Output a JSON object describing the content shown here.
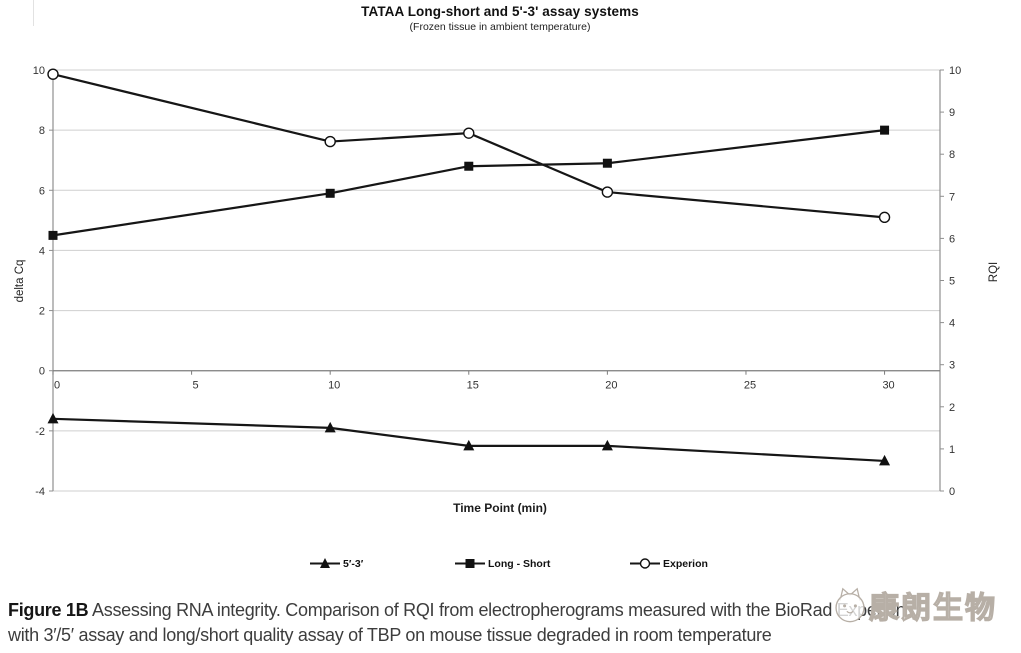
{
  "chart": {
    "title": "TATAA Long-short and 5'-3' assay systems",
    "subtitle": "(Frozen tissue in ambient temperature)",
    "xlabel": "Time Point (min)",
    "ylabel_left": "delta Cq",
    "ylabel_right": "RQI"
  },
  "chart_data": {
    "type": "line",
    "x": [
      0,
      10,
      15,
      20,
      30
    ],
    "series": [
      {
        "name": "5′-3′",
        "axis": "left",
        "marker": "triangle",
        "values": [
          -1.6,
          -1.9,
          -2.5,
          -2.5,
          -3.0
        ]
      },
      {
        "name": "Long - Short",
        "axis": "left",
        "marker": "square",
        "values": [
          4.5,
          5.9,
          6.8,
          6.9,
          8.0
        ]
      },
      {
        "name": "Experion",
        "axis": "right",
        "marker": "circle-open",
        "values": [
          9.9,
          8.3,
          8.5,
          7.1,
          6.5
        ]
      }
    ],
    "x_axis": {
      "min": 0,
      "max": 32,
      "ticks": [
        0,
        5,
        10,
        15,
        20,
        25,
        30
      ]
    },
    "left_axis": {
      "label": "delta Cq",
      "min": -4,
      "max": 10,
      "ticks": [
        -4,
        -2,
        0,
        2,
        4,
        6,
        8,
        10
      ]
    },
    "right_axis": {
      "label": "RQI",
      "min": 0,
      "max": 10,
      "ticks": [
        0,
        1,
        2,
        3,
        4,
        5,
        6,
        7,
        8,
        9,
        10
      ]
    },
    "grid": true,
    "legend_position": "bottom",
    "line_color": "#161616",
    "grid_color": "#cfcfcf"
  },
  "caption": {
    "label": "Figure 1B",
    "line1": "Assessing RNA integrity. Comparison of RQI from electropherograms measured with the BioRad Experion",
    "line2": "with 3′/5′ assay and long/short quality assay of TBP on mouse tissue degraded in room temperature"
  },
  "watermark": {
    "text": "康朗生物"
  }
}
